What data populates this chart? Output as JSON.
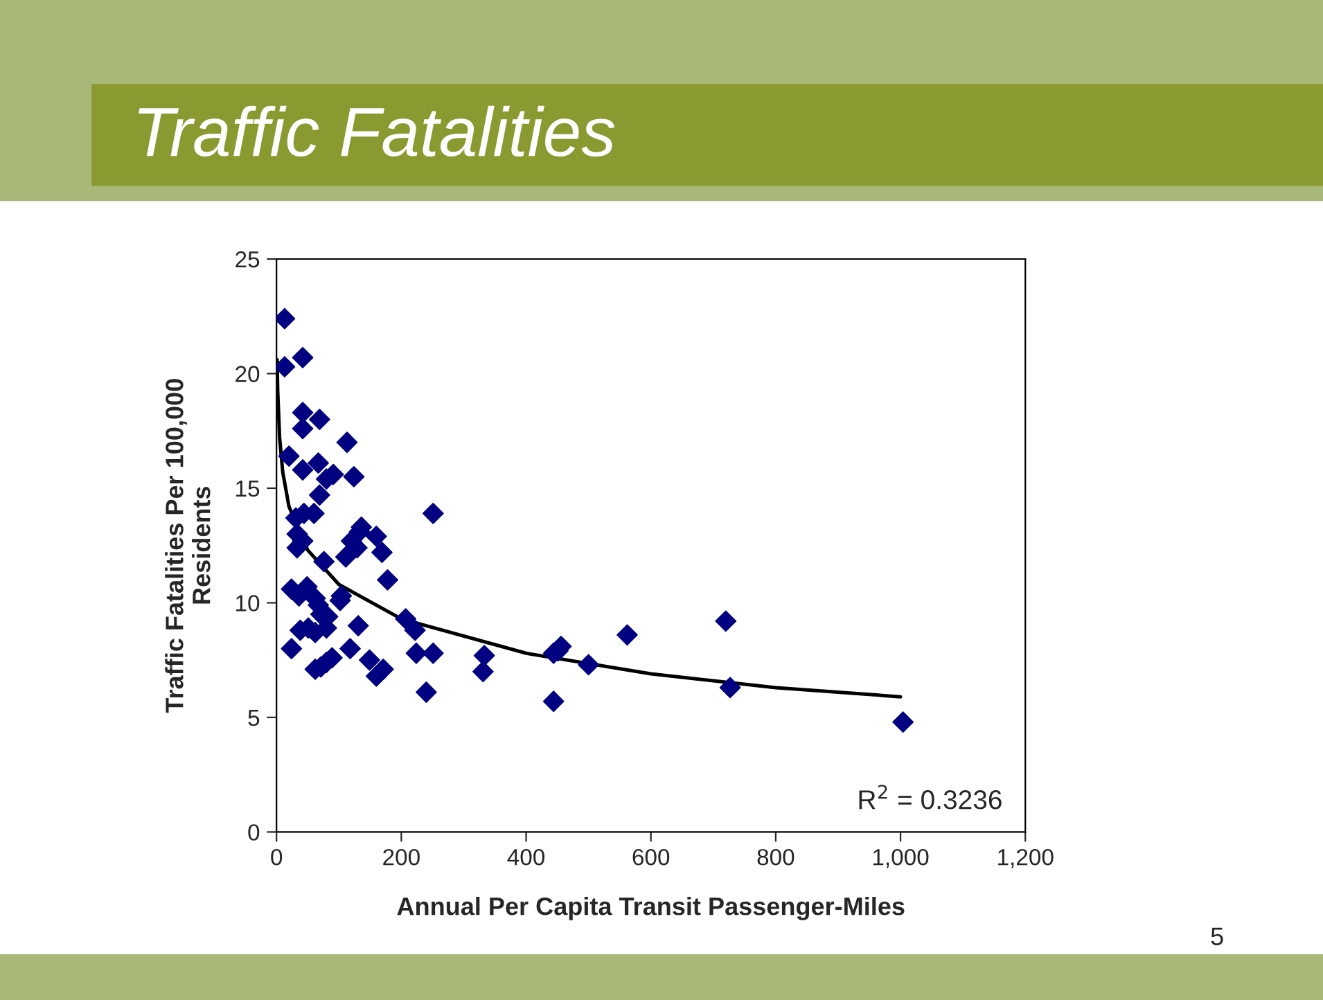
{
  "chart_data": {
    "type": "scatter",
    "title": "Traffic Fatalities",
    "xlabel": "Annual Per Capita Transit Passenger-Miles",
    "ylabel": "Traffic Fatalities Per 100,000\nResidents",
    "xlim": [
      0,
      1200
    ],
    "xticks": [
      0,
      200,
      400,
      600,
      800,
      {
        "value": 1000,
        "label": "1,000"
      },
      {
        "value": 1200,
        "label": "1,200"
      }
    ],
    "ylim": [
      0,
      25
    ],
    "yticks": [
      0,
      5,
      10,
      15,
      20,
      25
    ],
    "grid": false,
    "legend": false,
    "series": [
      {
        "marker": "diamond",
        "color": "#000080",
        "x": [
          13,
          13,
          42,
          42,
          42,
          69,
          20,
          113,
          67,
          69,
          91,
          80,
          124,
          42,
          31,
          44,
          60,
          251,
          33,
          42,
          33,
          136,
          133,
          120,
          129,
          160,
          169,
          111,
          76,
          178,
          24,
          36,
          49,
          62,
          67,
          104,
          102,
          71,
          82,
          38,
          51,
          62,
          80,
          131,
          207,
          222,
          24,
          118,
          149,
          62,
          71,
          80,
          89,
          160,
          171,
          224,
          251,
          240,
          333,
          331,
          444,
          456,
          500,
          562,
          720,
          727,
          444,
          1004,
          451
        ],
        "values": [
          22.4,
          20.3,
          20.7,
          18.3,
          17.6,
          18.0,
          16.4,
          17.0,
          16.1,
          14.7,
          15.6,
          15.4,
          15.5,
          15.8,
          13.7,
          13.9,
          13.9,
          13.9,
          13.0,
          12.7,
          12.4,
          13.3,
          13.1,
          12.7,
          12.4,
          12.9,
          12.2,
          12.0,
          11.8,
          11.0,
          10.6,
          10.3,
          10.7,
          10.2,
          9.9,
          10.3,
          10.1,
          9.5,
          9.4,
          8.8,
          8.9,
          8.7,
          8.9,
          9.0,
          9.3,
          8.8,
          8.0,
          8.0,
          7.5,
          7.1,
          7.2,
          7.4,
          7.6,
          6.8,
          7.1,
          7.8,
          7.8,
          6.1,
          7.7,
          7.0,
          7.8,
          8.1,
          7.3,
          8.6,
          9.2,
          6.3,
          5.7,
          4.8,
          7.9
        ]
      },
      {
        "type": "line",
        "marker": "none",
        "color": "#000000",
        "line_style": "solid",
        "x": [
          1,
          2,
          5,
          10,
          20,
          50,
          100,
          200,
          400,
          600,
          800,
          1000
        ],
        "values": [
          20.6,
          19.2,
          17.2,
          15.7,
          14.2,
          12.3,
          10.8,
          9.3,
          7.8,
          6.9,
          6.3,
          5.9
        ]
      }
    ],
    "annotations": [
      "R$^{2}$ = 0.3236",
      "5"
    ]
  }
}
